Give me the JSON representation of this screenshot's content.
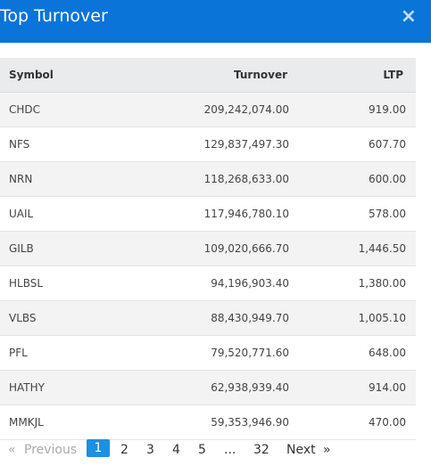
{
  "header": {
    "title": "Top Turnover",
    "close_glyph": "×"
  },
  "table": {
    "columns": [
      "Symbol",
      "Turnover",
      "LTP"
    ],
    "rows": [
      [
        "CHDC",
        "209,242,074.00",
        "919.00"
      ],
      [
        "NFS",
        "129,837,497.30",
        "607.70"
      ],
      [
        "NRN",
        "118,268,633.00",
        "600.00"
      ],
      [
        "UAIL",
        "117,946,780.10",
        "578.00"
      ],
      [
        "GILB",
        "109,020,666.70",
        "1,446.50"
      ],
      [
        "HLBSL",
        "94,196,903.40",
        "1,380.00"
      ],
      [
        "VLBS",
        "88,430,949.70",
        "1,005.10"
      ],
      [
        "PFL",
        "79,520,771.60",
        "648.00"
      ],
      [
        "HATHY",
        "62,938,939.40",
        "914.00"
      ],
      [
        "MMKJL",
        "59,353,946.90",
        "470.00"
      ]
    ]
  },
  "pagination": {
    "prev_arrow": "«",
    "prev_label": "Previous",
    "pages": [
      "1",
      "2",
      "3",
      "4",
      "5"
    ],
    "ellipsis": "...",
    "last_page": "32",
    "next_label": "Next",
    "next_arrow": "»"
  }
}
